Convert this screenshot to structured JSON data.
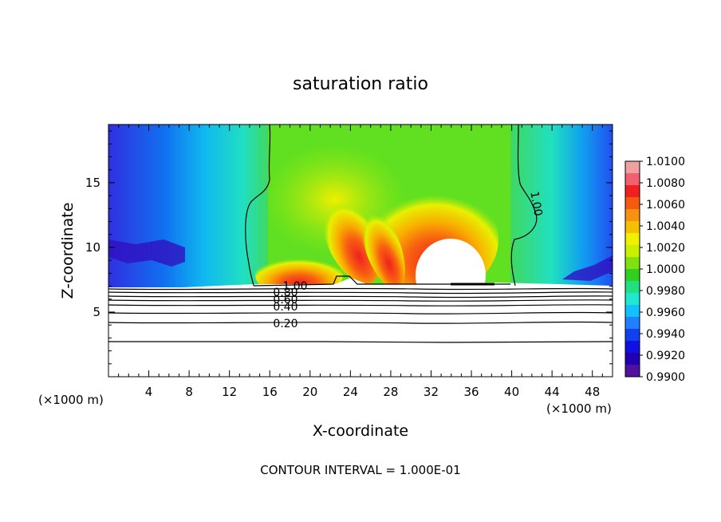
{
  "chart_data": {
    "type": "heatmap",
    "title": "saturation ratio",
    "xlabel": "X-coordinate",
    "ylabel": "Z-coordinate",
    "x_unit_left": "(×1000 m)",
    "x_unit_right": "(×1000 m)",
    "xlim": [
      0,
      50
    ],
    "ylim": [
      0,
      19.5
    ],
    "x_ticks": [
      "4",
      "8",
      "12",
      "16",
      "20",
      "24",
      "28",
      "32",
      "36",
      "40",
      "44",
      "48"
    ],
    "y_ticks": [
      "5",
      "10",
      "15"
    ],
    "colorbar": {
      "range": [
        0.99,
        1.01
      ],
      "labels": [
        "1.0100",
        "1.0080",
        "1.0060",
        "1.0040",
        "1.0020",
        "1.0000",
        "0.9980",
        "0.9960",
        "0.9940",
        "0.9920",
        "0.9900"
      ],
      "colors": [
        "#f0a0a0",
        "#f06070",
        "#f02020",
        "#f55a10",
        "#f89010",
        "#f5c000",
        "#f0f000",
        "#c8f000",
        "#80e010",
        "#30d020",
        "#20e080",
        "#20e8d0",
        "#10c0ff",
        "#2080ff",
        "#1040f0",
        "#1010e0",
        "#2000b0",
        "#5010a0"
      ]
    },
    "contours": {
      "upper_label": "1.00",
      "lower_labels": [
        "1.00",
        "0.80",
        "0.60",
        "0.40",
        "0.20"
      ]
    },
    "footer": "CONTOUR INTERVAL = 1.000E-01"
  }
}
